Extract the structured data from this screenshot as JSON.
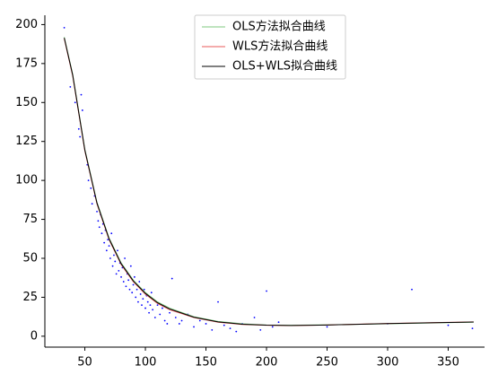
{
  "chart_data": {
    "type": "line",
    "xlim": [
      17,
      380
    ],
    "ylim": [
      -7,
      206
    ],
    "xticks": [
      50,
      100,
      150,
      200,
      250,
      300,
      350
    ],
    "yticks": [
      0,
      25,
      50,
      75,
      100,
      125,
      150,
      175,
      200
    ],
    "legend": "upper center",
    "scatter": {
      "color": "#0000ff",
      "x": [
        33,
        38,
        42,
        45,
        46,
        47,
        48,
        52,
        53,
        55,
        56,
        58,
        60,
        61,
        62,
        63,
        64,
        65,
        66,
        67,
        68,
        69,
        70,
        71,
        72,
        73,
        74,
        75,
        76,
        77,
        78,
        79,
        80,
        81,
        82,
        83,
        84,
        85,
        86,
        87,
        88,
        89,
        90,
        91,
        92,
        93,
        94,
        95,
        96,
        97,
        98,
        99,
        100,
        101,
        102,
        103,
        104,
        105,
        106,
        108,
        110,
        112,
        114,
        116,
        118,
        120,
        122,
        125,
        128,
        130,
        135,
        140,
        145,
        150,
        155,
        160,
        165,
        170,
        175,
        180,
        190,
        195,
        200,
        205,
        210,
        250,
        300,
        320,
        350,
        370
      ],
      "y": [
        198,
        160,
        150,
        133,
        128,
        155,
        145,
        110,
        100,
        95,
        85,
        90,
        80,
        74,
        70,
        78,
        66,
        72,
        60,
        68,
        55,
        62,
        58,
        50,
        66,
        45,
        52,
        48,
        40,
        55,
        42,
        47,
        38,
        44,
        35,
        50,
        32,
        40,
        36,
        30,
        45,
        28,
        33,
        38,
        25,
        30,
        22,
        35,
        27,
        20,
        24,
        30,
        18,
        26,
        22,
        15,
        20,
        28,
        17,
        12,
        20,
        14,
        18,
        10,
        8,
        15,
        37,
        12,
        8,
        10,
        14,
        6,
        10,
        8,
        4,
        22,
        7,
        5,
        3,
        8,
        12,
        4,
        29,
        6,
        9,
        6,
        8,
        30,
        7,
        5
      ]
    },
    "series": [
      {
        "name": "OLS方法拟合曲线",
        "color": "#7fc97f",
        "x": [
          33,
          40,
          50,
          60,
          70,
          80,
          90,
          100,
          110,
          120,
          140,
          160,
          180,
          200,
          220,
          250,
          300,
          350,
          371
        ],
        "values": [
          192,
          168,
          120,
          86,
          63,
          47,
          36,
          28,
          22,
          18,
          12.5,
          9.5,
          8,
          7.2,
          7,
          7.3,
          8,
          8.7,
          9
        ]
      },
      {
        "name": "WLS方法拟合曲线",
        "color": "#e8585a",
        "x": [
          33,
          40,
          50,
          60,
          70,
          80,
          90,
          100,
          110,
          120,
          140,
          160,
          180,
          200,
          220,
          250,
          300,
          350,
          371
        ],
        "values": [
          191,
          167,
          119,
          85,
          62,
          46,
          35,
          27,
          21,
          17,
          12,
          9,
          7.5,
          7,
          6.8,
          7.2,
          8.2,
          8.9,
          9.2
        ]
      },
      {
        "name": "OLS+WLS拟合曲线",
        "color": "#000000",
        "x": [
          33,
          40,
          50,
          60,
          70,
          80,
          90,
          100,
          110,
          120,
          140,
          160,
          180,
          200,
          220,
          250,
          300,
          350,
          371
        ],
        "values": [
          191.5,
          167.5,
          119.5,
          85.5,
          62.5,
          46.5,
          35.5,
          27.5,
          21.5,
          17.5,
          12.2,
          9.2,
          7.7,
          7.1,
          6.9,
          7.2,
          8.1,
          8.8,
          9.1
        ]
      }
    ]
  }
}
